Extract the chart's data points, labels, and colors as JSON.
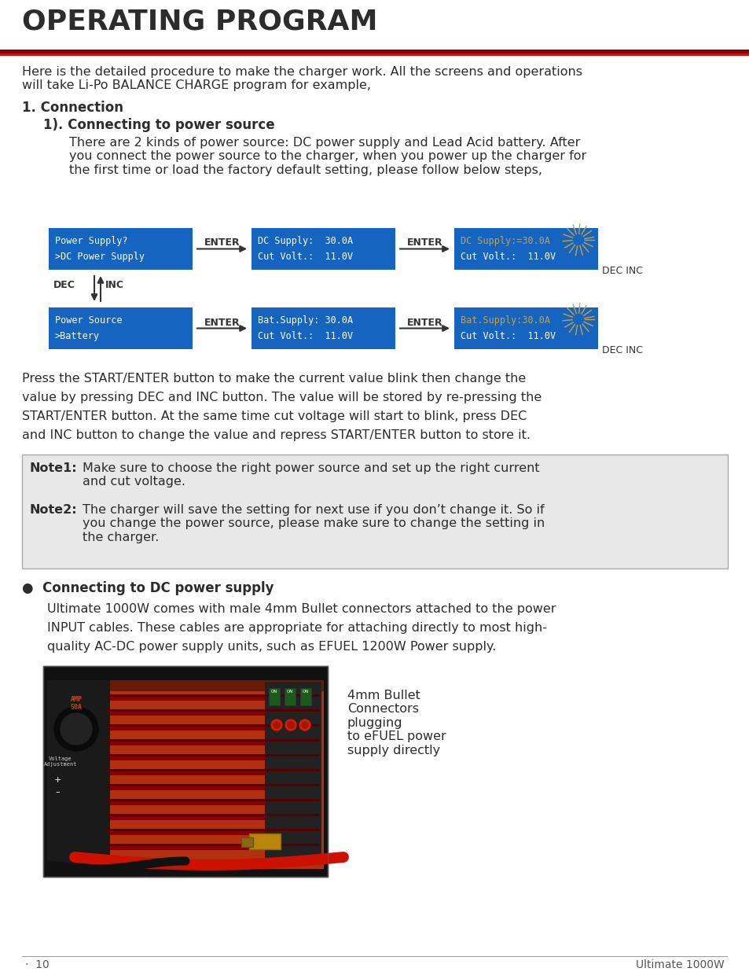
{
  "title": "OPERATING PROGRAM",
  "page_bg": "#ffffff",
  "body_color": "#2c2c2c",
  "red_line1": "#8b0000",
  "red_line2": "#cc1111",
  "intro": "Here is the detailed procedure to make the charger work. All the screens and operations\nwill take Li-Po BALANCE CHARGE program for example,",
  "s1_head": "1. Connection",
  "s1_sub": "1). Connecting to power source",
  "s1_body": "There are 2 kinds of power source: DC power supply and Lead Acid battery. After\nyou connect the power source to the charger, when you power up the charger for\nthe first time or load the factory default setting, please follow below steps,",
  "box_bg": "#1565c0",
  "box_text": "#ffffff",
  "blink_color": "#c8a040",
  "r1c1l1": "Power Supply?",
  "r1c1l2": ">DC Power Supply",
  "r1c2l1": "DC Supply:  30.0A",
  "r1c2l2": "Cut Volt.:  11.0V",
  "r1c3l1": "DC Supply:=30.0A",
  "r1c3l2": "Cut Volt.:  11.0V",
  "r2c1l1": "Power Source",
  "r2c1l2": ">Battery",
  "r2c2l1": "Bat.Supply: 30.0A",
  "r2c2l2": "Cut Volt.:  11.0V",
  "r2c3l1": "Bat.Supply:30.0A",
  "r2c3l2": "Cut Volt.:  11.0V",
  "enter_lbl": "ENTER",
  "decinc_lbl": "DEC INC",
  "dec_lbl": "DEC",
  "inc_lbl": "INC",
  "press_text_l1": "Press the START/ENTER button to make the current value blink then change the",
  "press_text_l2": "value by pressing DEC and INC button. The value will be stored by re-pressing the",
  "press_text_l3": "START/ENTER button. At the same time cut voltage will start to blink, press DEC",
  "press_text_l4": "and INC button to change the value and repress START/ENTER button to store it.",
  "note_bg": "#e8e8e8",
  "note_border": "#aaaaaa",
  "note1_label": "Note1:",
  "note1_body": "Make sure to choose the right power source and set up the right current\nand cut voltage.",
  "note2_label": "Note2:",
  "note2_body": "The charger will save the setting for next use if you don’t change it. So if\nyou change the power source, please make sure to change the setting in\nthe charger.",
  "bullet_head": "●  Connecting to DC power supply",
  "bullet_body_l1": "Ultimate 1000W comes with male 4mm Bullet connectors attached to the power",
  "bullet_body_l2": "INPUT cables. These cables are appropriate for attaching directly to most high-",
  "bullet_body_l3": "quality AC-DC power supply units, such as EFUEL 1200W Power supply.",
  "photo_caption": "4mm Bullet\nConnectors\nplugging\nto eFUEL power\nsupply directly",
  "footer_left": "·  10",
  "footer_right": "Ultimate 1000W"
}
